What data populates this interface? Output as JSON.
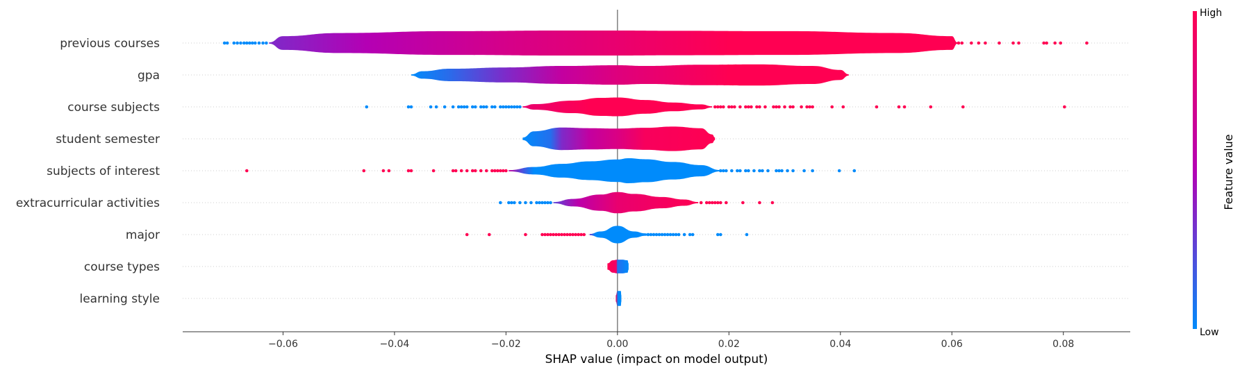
{
  "chart_data": {
    "type": "violin",
    "title": "",
    "xlabel": "SHAP value (impact on model output)",
    "xlim": [
      -0.078,
      0.092
    ],
    "xticks": [
      -0.06,
      -0.04,
      -0.02,
      0.0,
      0.02,
      0.04,
      0.06,
      0.08
    ],
    "xtick_labels": [
      "−0.06",
      "−0.04",
      "−0.02",
      "0.00",
      "0.02",
      "0.04",
      "0.06",
      "0.08"
    ],
    "colorbar": {
      "title": "Feature value",
      "high_label": "High",
      "low_label": "Low",
      "low_color": "#008bfb",
      "high_color": "#ff0052"
    },
    "features": [
      {
        "name": "previous courses",
        "profile": [
          [
            -0.0625,
            0.05
          ],
          [
            -0.06,
            0.55
          ],
          [
            -0.05,
            0.8
          ],
          [
            -0.03,
            0.95
          ],
          [
            -0.01,
            1.0
          ],
          [
            0.0,
            1.0
          ],
          [
            0.01,
            0.98
          ],
          [
            0.03,
            0.95
          ],
          [
            0.05,
            0.8
          ],
          [
            0.06,
            0.55
          ],
          [
            0.061,
            0.05
          ]
        ],
        "color_stops": [
          [
            -0.0625,
            0.35
          ],
          [
            -0.045,
            0.5
          ],
          [
            -0.02,
            0.72
          ],
          [
            0.0,
            0.85
          ],
          [
            0.02,
            1.0
          ],
          [
            0.061,
            1.0
          ]
        ],
        "low_outliers": [
          -0.0705,
          -0.07,
          -0.0688,
          -0.0682,
          -0.0676,
          -0.067,
          -0.0665,
          -0.066,
          -0.0655,
          -0.065,
          -0.0643,
          -0.0636,
          -0.063
        ],
        "high_outliers": [
          0.0612,
          0.0618,
          0.0635,
          0.0648,
          0.066,
          0.0685,
          0.071,
          0.072,
          0.0765,
          0.077,
          0.0785,
          0.0795,
          0.0842
        ]
      },
      {
        "name": "gpa",
        "profile": [
          [
            -0.037,
            0.05
          ],
          [
            -0.035,
            0.3
          ],
          [
            -0.03,
            0.5
          ],
          [
            -0.02,
            0.6
          ],
          [
            -0.01,
            0.72
          ],
          [
            0.0,
            0.78
          ],
          [
            0.005,
            0.72
          ],
          [
            0.015,
            0.82
          ],
          [
            0.025,
            0.85
          ],
          [
            0.035,
            0.72
          ],
          [
            0.04,
            0.4
          ],
          [
            0.0415,
            0.05
          ]
        ],
        "color_stops": [
          [
            -0.037,
            0.0
          ],
          [
            -0.03,
            0.12
          ],
          [
            -0.02,
            0.35
          ],
          [
            -0.01,
            0.6
          ],
          [
            0.0,
            0.78
          ],
          [
            0.02,
            1.0
          ],
          [
            0.0415,
            1.0
          ]
        ],
        "low_outliers": [],
        "high_outliers": []
      },
      {
        "name": "course subjects",
        "profile": [
          [
            -0.017,
            0.05
          ],
          [
            -0.015,
            0.22
          ],
          [
            -0.008,
            0.5
          ],
          [
            -0.003,
            0.72
          ],
          [
            0.0,
            0.75
          ],
          [
            0.005,
            0.55
          ],
          [
            0.01,
            0.35
          ],
          [
            0.015,
            0.2
          ],
          [
            0.017,
            0.05
          ]
        ],
        "color_stops": [
          [
            -0.017,
            0.85
          ],
          [
            -0.005,
            1.0
          ],
          [
            0.017,
            1.0
          ]
        ],
        "low_outliers": [
          -0.045,
          -0.0375,
          -0.037,
          -0.0335,
          -0.0325,
          -0.031,
          -0.0295,
          -0.0285,
          -0.028,
          -0.0275,
          -0.027,
          -0.026,
          -0.0255,
          -0.0245,
          -0.024,
          -0.0235,
          -0.0225,
          -0.022,
          -0.021,
          -0.0205,
          -0.02,
          -0.0195,
          -0.019,
          -0.0185,
          -0.018,
          -0.0175
        ],
        "high_outliers": [
          0.0175,
          0.018,
          0.0185,
          0.019,
          0.02,
          0.0205,
          0.021,
          0.022,
          0.023,
          0.0235,
          0.024,
          0.025,
          0.0255,
          0.0265,
          0.028,
          0.0285,
          0.029,
          0.03,
          0.031,
          0.0315,
          0.033,
          0.034,
          0.0345,
          0.035,
          0.0385,
          0.0405,
          0.0465,
          0.0505,
          0.0515,
          0.0562,
          0.062,
          0.0802
        ]
      },
      {
        "name": "student semester",
        "profile": [
          [
            -0.017,
            0.1
          ],
          [
            -0.015,
            0.6
          ],
          [
            -0.01,
            0.9
          ],
          [
            -0.005,
            0.85
          ],
          [
            0.0,
            0.82
          ],
          [
            0.005,
            0.88
          ],
          [
            0.01,
            0.98
          ],
          [
            0.015,
            0.85
          ],
          [
            0.017,
            0.35
          ],
          [
            0.0175,
            0.1
          ]
        ],
        "color_stops": [
          [
            -0.017,
            0.0
          ],
          [
            -0.012,
            0.1
          ],
          [
            -0.01,
            0.35
          ],
          [
            -0.005,
            0.6
          ],
          [
            0.0,
            0.75
          ],
          [
            0.005,
            0.95
          ],
          [
            0.0175,
            1.0
          ]
        ],
        "low_outliers": [],
        "high_outliers": []
      },
      {
        "name": "subjects of interest",
        "profile": [
          [
            -0.0195,
            0.05
          ],
          [
            -0.015,
            0.3
          ],
          [
            -0.01,
            0.55
          ],
          [
            -0.005,
            0.75
          ],
          [
            0.0,
            0.9
          ],
          [
            0.002,
            1.0
          ],
          [
            0.005,
            0.92
          ],
          [
            0.01,
            0.7
          ],
          [
            0.015,
            0.45
          ],
          [
            0.0185,
            0.05
          ]
        ],
        "color_stops": [
          [
            -0.0195,
            0.6
          ],
          [
            -0.017,
            0.2
          ],
          [
            -0.015,
            0.0
          ],
          [
            0.0185,
            0.0
          ]
        ],
        "low_outliers": [
          -0.0665,
          -0.0455,
          -0.042,
          -0.041,
          -0.0375,
          -0.037,
          -0.033,
          -0.0295,
          -0.029,
          -0.028,
          -0.027,
          -0.026,
          -0.0255,
          -0.0245,
          -0.0235,
          -0.0225,
          -0.022,
          -0.0215,
          -0.021,
          -0.0205,
          -0.02
        ],
        "high_outliers": [
          0.0185,
          0.019,
          0.0195,
          0.0205,
          0.0215,
          0.022,
          0.023,
          0.0235,
          0.0245,
          0.0255,
          0.026,
          0.027,
          0.0285,
          0.029,
          0.0295,
          0.0305,
          0.0315,
          0.0335,
          0.035,
          0.0398,
          0.0425
        ]
      },
      {
        "name": "extracurricular activities",
        "profile": [
          [
            -0.0115,
            0.05
          ],
          [
            -0.008,
            0.3
          ],
          [
            -0.003,
            0.65
          ],
          [
            0.0,
            0.85
          ],
          [
            0.003,
            0.7
          ],
          [
            0.008,
            0.45
          ],
          [
            0.012,
            0.25
          ],
          [
            0.0145,
            0.05
          ]
        ],
        "color_stops": [
          [
            -0.0115,
            0.25
          ],
          [
            -0.007,
            0.55
          ],
          [
            0.0,
            0.85
          ],
          [
            0.0145,
            1.0
          ]
        ],
        "low_outliers": [
          -0.021,
          -0.0195,
          -0.019,
          -0.0185,
          -0.0175,
          -0.0165,
          -0.0155,
          -0.0145,
          -0.014,
          -0.0135,
          -0.013,
          -0.0125,
          -0.012
        ],
        "high_outliers": [
          0.015,
          0.016,
          0.0165,
          0.017,
          0.0175,
          0.018,
          0.0185,
          0.0195,
          0.0225,
          0.0255,
          0.0278
        ]
      },
      {
        "name": "major",
        "profile": [
          [
            -0.005,
            0.05
          ],
          [
            -0.003,
            0.25
          ],
          [
            0.0,
            0.7
          ],
          [
            0.003,
            0.25
          ],
          [
            0.005,
            0.1
          ],
          [
            0.0055,
            0.05
          ]
        ],
        "color_stops": [
          [
            -0.005,
            0.3
          ],
          [
            -0.004,
            0.0
          ],
          [
            0.0055,
            0.0
          ]
        ],
        "low_outliers": [],
        "high_outliers": [
          0.0055,
          0.006,
          0.0065,
          0.007,
          0.0075,
          0.008,
          0.0085,
          0.009,
          0.0095,
          0.01,
          0.0105,
          0.011,
          0.012,
          0.013,
          0.0135,
          0.018,
          0.0185,
          0.0232
        ]
      },
      {
        "name": "course types",
        "profile": [
          [
            -0.0018,
            0.25
          ],
          [
            -0.0008,
            0.5
          ],
          [
            0.0,
            0.55
          ],
          [
            0.0008,
            0.55
          ],
          [
            0.0018,
            0.5
          ],
          [
            0.002,
            0.25
          ]
        ],
        "color_stops": [
          [
            -0.0018,
            1.0
          ],
          [
            -0.0002,
            0.9
          ],
          [
            0.0,
            0.1
          ],
          [
            0.002,
            0.0
          ]
        ],
        "low_outliers": [],
        "high_outliers": []
      },
      {
        "name": "learning style",
        "profile": [
          [
            -0.0003,
            0.25
          ],
          [
            0.0,
            0.6
          ],
          [
            0.0006,
            0.6
          ],
          [
            0.0007,
            0.25
          ]
        ],
        "color_stops": [
          [
            -0.0003,
            1.0
          ],
          [
            0.0001,
            0.0
          ],
          [
            0.0007,
            0.0
          ]
        ],
        "low_outliers": [],
        "high_outliers": []
      }
    ],
    "high_only_outliers_major_low": [
      -0.027,
      -0.023,
      -0.0165,
      -0.0135,
      -0.013,
      -0.0125,
      -0.012,
      -0.0115,
      -0.011,
      -0.0105,
      -0.01,
      -0.0095,
      -0.009,
      -0.0085,
      -0.008,
      -0.0075,
      -0.007,
      -0.0065,
      -0.006
    ]
  }
}
